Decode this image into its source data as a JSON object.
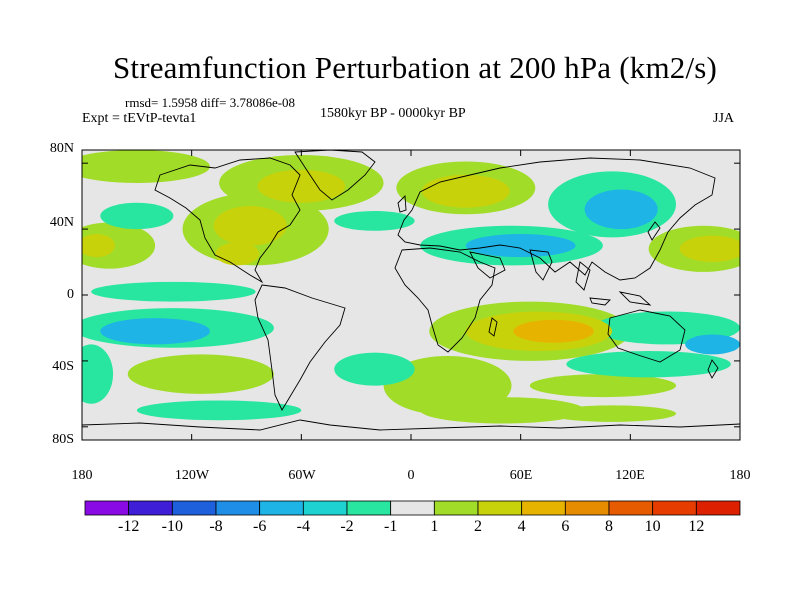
{
  "title": "Streamfunction Perturbation at 200 hPa (km2/s)",
  "stats_text": "rmsd= 1.5958 diff= 3.78086e-08",
  "experiment_text": "Expt = tEVtP-tevta1",
  "period_text": "1580kyr BP - 0000kyr BP",
  "season": "JJA",
  "lat_labels": [
    "80N",
    "40N",
    "0",
    "40S",
    "80S"
  ],
  "lon_labels": [
    "180",
    "120W",
    "60W",
    "0",
    "60E",
    "120E",
    "180"
  ],
  "colorbar": {
    "labels": [
      "-12",
      "-10",
      "-8",
      "-6",
      "-4",
      "-2",
      "-1",
      "1",
      "2",
      "4",
      "6",
      "8",
      "10",
      "12"
    ],
    "colors": [
      "#8a0ae6",
      "#3e1ed6",
      "#1e5fdc",
      "#1e8ee6",
      "#1eb4e6",
      "#1ed2d2",
      "#28e6a0",
      "#e6e6e6",
      "#a0dc28",
      "#c8d20a",
      "#e6b400",
      "#e68c00",
      "#e65a00",
      "#e63c00",
      "#dc2000"
    ]
  },
  "regions": [
    {
      "name": "arctic-green-west",
      "lon": -150,
      "lat": 78,
      "rx": 40,
      "ry": 10,
      "level": "1to2"
    },
    {
      "name": "arctic-green-canada",
      "lon": -60,
      "lat": 68,
      "rx": 45,
      "ry": 17,
      "level": "1to2"
    },
    {
      "name": "arctic-yellow-canada",
      "lon": -60,
      "lat": 66,
      "rx": 24,
      "ry": 10,
      "level": "2to4"
    },
    {
      "name": "north-america-green",
      "lon": -85,
      "lat": 40,
      "rx": 40,
      "ry": 22,
      "level": "1to2"
    },
    {
      "name": "north-america-yellow",
      "lon": -88,
      "lat": 42,
      "rx": 20,
      "ry": 12,
      "level": "2to4"
    },
    {
      "name": "north-america-yellow-2",
      "lon": -95,
      "lat": 25,
      "rx": 12,
      "ry": 7,
      "level": "2to4"
    },
    {
      "name": "pacific-green-north",
      "lon": -165,
      "lat": 30,
      "rx": 25,
      "ry": 14,
      "level": "1to2"
    },
    {
      "name": "pacific-yellow-north",
      "lon": -172,
      "lat": 30,
      "rx": 10,
      "ry": 7,
      "level": "2to4"
    },
    {
      "name": "pacific-teal-north",
      "lon": -150,
      "lat": 48,
      "rx": 20,
      "ry": 8,
      "level": "-2to-1"
    },
    {
      "name": "pacific-green-tropics",
      "lon": -130,
      "lat": 2,
      "rx": 45,
      "ry": 6,
      "level": "-2to-1"
    },
    {
      "name": "pacific-teal-south",
      "lon": -130,
      "lat": -20,
      "rx": 55,
      "ry": 12,
      "level": "-2to-1"
    },
    {
      "name": "pacific-cyan-south",
      "lon": -140,
      "lat": -22,
      "rx": 30,
      "ry": 8,
      "level": "-4to-2"
    },
    {
      "name": "south-america-teal",
      "lon": -20,
      "lat": -45,
      "rx": 22,
      "ry": 10,
      "level": "-2to-1"
    },
    {
      "name": "southern-green-west",
      "lon": -115,
      "lat": -48,
      "rx": 40,
      "ry": 12,
      "level": "1to2"
    },
    {
      "name": "southern-teal-far-west",
      "lon": -175,
      "lat": -48,
      "rx": 12,
      "ry": 18,
      "level": "-2to-1"
    },
    {
      "name": "antarctic-teal-west",
      "lon": -105,
      "lat": -70,
      "rx": 45,
      "ry": 6,
      "level": "-2to-1"
    },
    {
      "name": "atlantic-teal-north",
      "lon": -20,
      "lat": 45,
      "rx": 22,
      "ry": 6,
      "level": "-2to-1"
    },
    {
      "name": "europe-green-north",
      "lon": 30,
      "lat": 65,
      "rx": 38,
      "ry": 16,
      "level": "1to2"
    },
    {
      "name": "europe-yellow-north",
      "lon": 30,
      "lat": 63,
      "rx": 24,
      "ry": 10,
      "level": "2to4"
    },
    {
      "name": "eurasia-teal",
      "lon": 55,
      "lat": 30,
      "rx": 50,
      "ry": 12,
      "level": "-2to-1"
    },
    {
      "name": "eurasia-cyan",
      "lon": 60,
      "lat": 30,
      "rx": 30,
      "ry": 7,
      "level": "-4to-2"
    },
    {
      "name": "siberia-teal",
      "lon": 110,
      "lat": 55,
      "rx": 35,
      "ry": 20,
      "level": "-2to-1"
    },
    {
      "name": "siberia-cyan",
      "lon": 115,
      "lat": 52,
      "rx": 20,
      "ry": 12,
      "level": "-4to-2"
    },
    {
      "name": "pacific-green-east",
      "lon": 160,
      "lat": 28,
      "rx": 30,
      "ry": 14,
      "level": "1to2"
    },
    {
      "name": "pacific-yellow-east",
      "lon": 165,
      "lat": 28,
      "rx": 18,
      "ry": 8,
      "level": "2to4"
    },
    {
      "name": "indian-green",
      "lon": 65,
      "lat": -22,
      "rx": 55,
      "ry": 18,
      "level": "1to2"
    },
    {
      "name": "indian-yellow",
      "lon": 70,
      "lat": -22,
      "rx": 40,
      "ry": 12,
      "level": "2to4"
    },
    {
      "name": "indian-orange",
      "lon": 78,
      "lat": -22,
      "rx": 22,
      "ry": 7,
      "level": "4to6"
    },
    {
      "name": "southern-ocean-green",
      "lon": 20,
      "lat": -55,
      "rx": 35,
      "ry": 18,
      "level": "1to2"
    },
    {
      "name": "southern-ocean-green-2",
      "lon": 50,
      "lat": -70,
      "rx": 45,
      "ry": 8,
      "level": "1to2"
    },
    {
      "name": "australia-teal",
      "lon": 140,
      "lat": -20,
      "rx": 40,
      "ry": 10,
      "level": "-2to-1"
    },
    {
      "name": "australia-teal-2",
      "lon": 130,
      "lat": -42,
      "rx": 45,
      "ry": 8,
      "level": "-2to-1"
    },
    {
      "name": "australia-cyan",
      "lon": 165,
      "lat": -30,
      "rx": 15,
      "ry": 6,
      "level": "-4to-2"
    },
    {
      "name": "southern-green-east",
      "lon": 105,
      "lat": -55,
      "rx": 40,
      "ry": 7,
      "level": "1to2"
    },
    {
      "name": "antarctic-green-east",
      "lon": 110,
      "lat": -72,
      "rx": 35,
      "ry": 5,
      "level": "1to2"
    }
  ]
}
